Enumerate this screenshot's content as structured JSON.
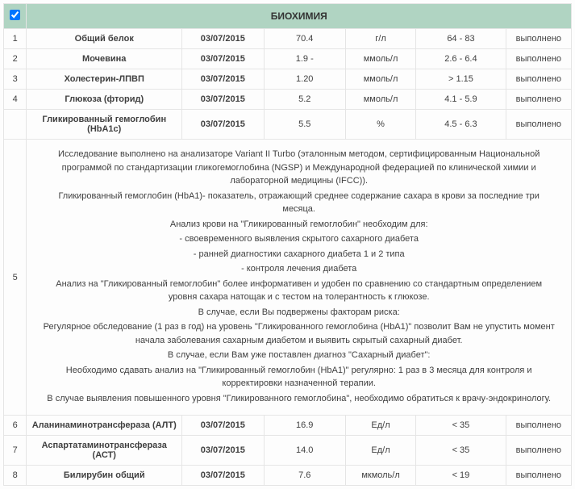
{
  "header": {
    "title": "БИОХИМИЯ",
    "checkbox_checked": true
  },
  "rows": [
    {
      "num": "1",
      "name": "Общий белок",
      "date": "03/07/2015",
      "value": "70.4",
      "unit": "г/л",
      "ref": "64 - 83",
      "status": "выполнено"
    },
    {
      "num": "2",
      "name": "Мочевина",
      "date": "03/07/2015",
      "value": "1.9 -",
      "unit": "ммоль/л",
      "ref": "2.6 - 6.4",
      "status": "выполнено"
    },
    {
      "num": "3",
      "name": "Холестерин-ЛПВП",
      "date": "03/07/2015",
      "value": "1.20",
      "unit": "ммоль/л",
      "ref": "> 1.15",
      "status": "выполнено"
    },
    {
      "num": "4",
      "name": "Глюкоза (фторид)",
      "date": "03/07/2015",
      "value": "5.2",
      "unit": "ммоль/л",
      "ref": "4.1 - 5.9",
      "status": "выполнено"
    },
    {
      "num": "",
      "name": "Гликированный гемоглобин (HbA1c)",
      "date": "03/07/2015",
      "value": "5.5",
      "unit": "%",
      "ref": "4.5 - 6.3",
      "status": "выполнено"
    }
  ],
  "description": {
    "num": "5",
    "paragraphs": [
      "Исследование выполнено на анализаторе Variant II Turbo (эталонным методом, сертифицированным Национальной программой по стандартизации гликогемоглобина (NGSP) и Международной федерацией по клинической химии и лабораторной медицины (IFCC)).",
      "Гликированный гемоглобин (HbA1)- показатель, отражающий среднее содержание сахара в крови за последние три месяца.",
      "Анализ крови на \"Гликированный гемоглобин\" необходим для:",
      "- своевременного выявления скрытого сахарного диабета",
      "- ранней диагностики сахарного диабета 1 и 2 типа",
      "- контроля лечения диабета",
      "Анализ на \"Гликированный гемоглобин\" более информативен и удобен по сравнению со стандартным определением уровня сахара натощак и с тестом на толерантность к глюкозе.",
      "В случае, если Вы подвержены факторам риска:",
      "Регулярное обследование (1 раз в год) на уровень \"Гликированного гемоглобина (HbA1)\" позволит Вам не упустить момент начала заболевания сахарным диабетом и выявить скрытый сахарный диабет.",
      "В случае, если Вам уже поставлен диагноз \"Сахарный диабет\":",
      "Необходимо сдавать анализ на \"Гликированный гемоглобин (HbA1)\" регулярно: 1 раз в 3 месяца для контроля и корректировки назначенной терапии.",
      "В случае выявления повышенного уровня \"Гликированного гемоглобина\", необходимо обратиться к врачу-эндокринологу."
    ]
  },
  "rows2": [
    {
      "num": "6",
      "name": "Аланинаминотрансфераза (АЛТ)",
      "date": "03/07/2015",
      "value": "16.9",
      "unit": "Ед/л",
      "ref": "< 35",
      "status": "выполнено"
    },
    {
      "num": "7",
      "name": "Аспартатаминотрансфераза (АСТ)",
      "date": "03/07/2015",
      "value": "14.0",
      "unit": "Ед/л",
      "ref": "< 35",
      "status": "выполнено"
    },
    {
      "num": "8",
      "name": "Билирубин общий",
      "date": "03/07/2015",
      "value": "7.6",
      "unit": "мкмоль/л",
      "ref": "< 19",
      "status": "выполнено"
    }
  ]
}
